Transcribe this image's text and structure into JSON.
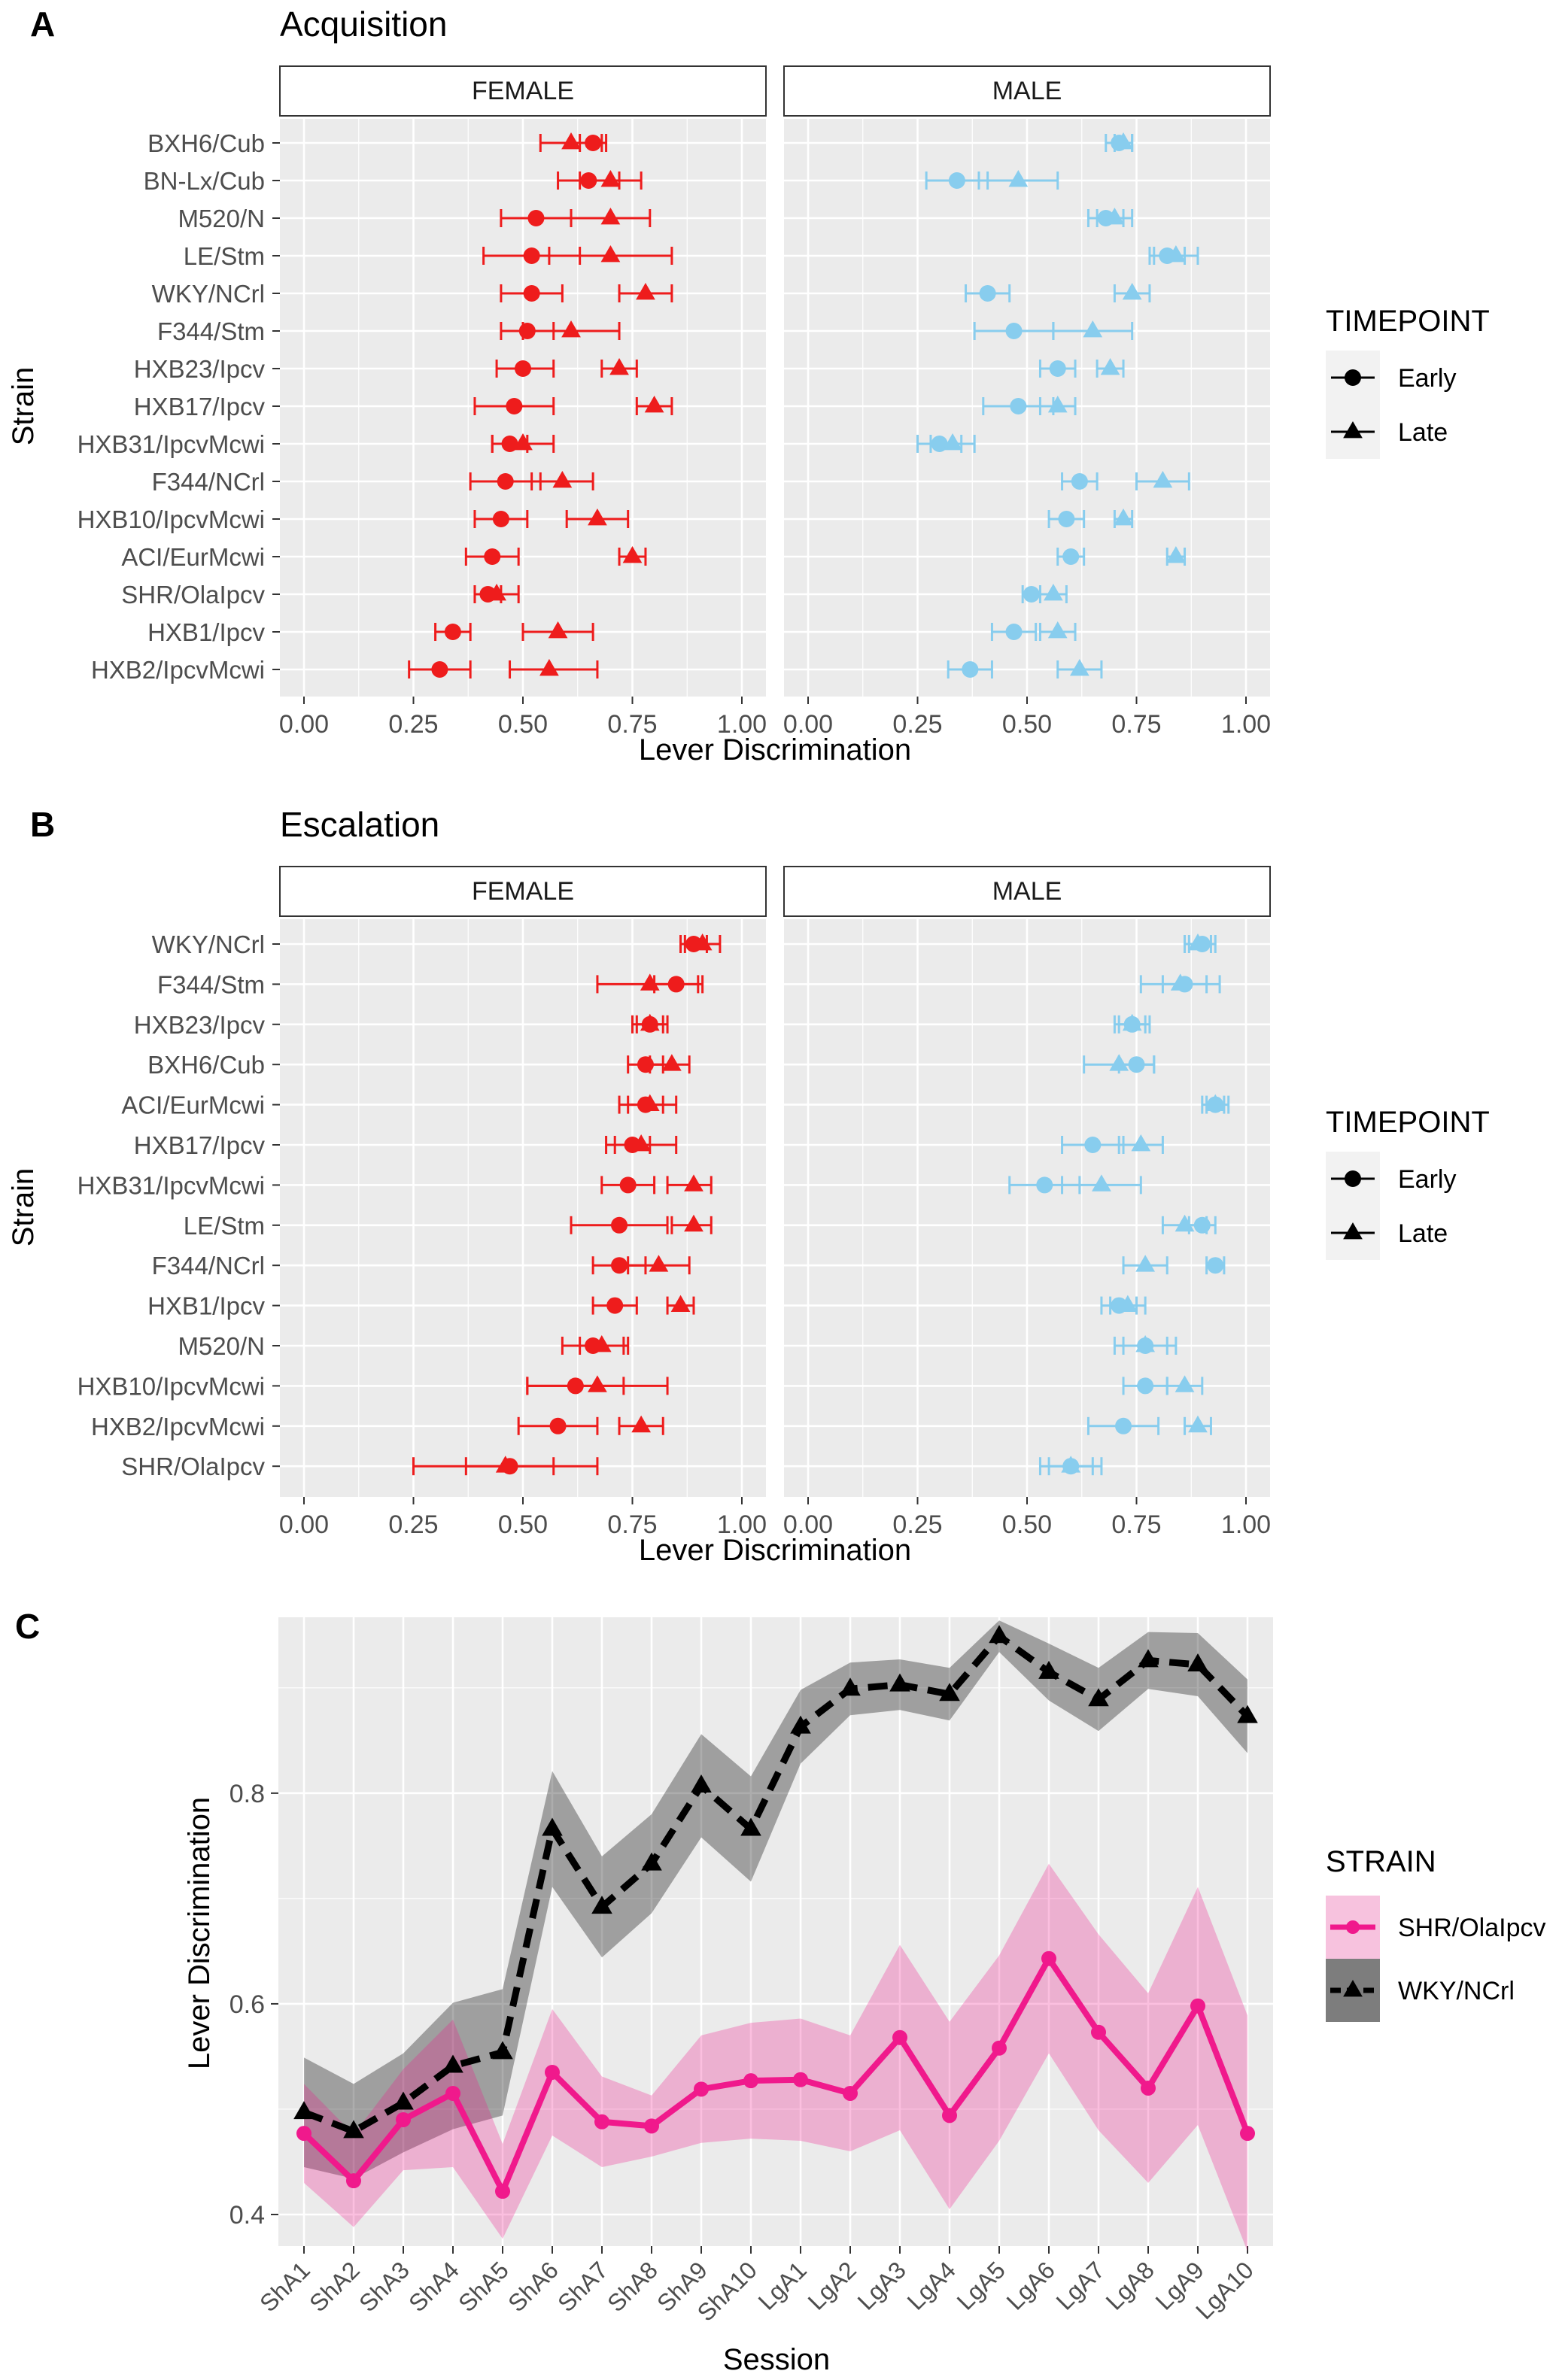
{
  "chart_data": [
    {
      "type": "scatter",
      "panel_label": "A",
      "title": "Acquisition",
      "xlabel": "Lever Discrimination",
      "ylabel": "Strain",
      "xlim": [
        0,
        1
      ],
      "x_ticks": [
        "0.00",
        "0.25",
        "0.50",
        "0.75",
        "1.00"
      ],
      "facets": [
        "FEMALE",
        "MALE"
      ],
      "legend": {
        "title": "TIMEPOINT",
        "entries": [
          "Early",
          "Late"
        ],
        "position": "right"
      },
      "series_colors": {
        "FEMALE": "#ee1c1c",
        "MALE": "#88cdee"
      },
      "strains": [
        "BXH6/Cub",
        "BN-Lx/Cub",
        "M520/N",
        "LE/Stm",
        "WKY/NCrl",
        "F344/Stm",
        "HXB23/Ipcv",
        "HXB17/Ipcv",
        "HXB31/IpcvMcwi",
        "F344/NCrl",
        "HXB10/IpcvMcwi",
        "ACI/EurMcwi",
        "SHR/OlaIpcv",
        "HXB1/Ipcv",
        "HXB2/IpcvMcwi"
      ],
      "data": {
        "FEMALE": {
          "Early": [
            0.66,
            0.65,
            0.53,
            0.52,
            0.52,
            0.51,
            0.5,
            0.48,
            0.47,
            0.46,
            0.45,
            0.43,
            0.42,
            0.34,
            0.31
          ],
          "Early_lo": [
            0.63,
            0.58,
            0.45,
            0.41,
            0.45,
            0.45,
            0.44,
            0.39,
            0.43,
            0.38,
            0.39,
            0.37,
            0.39,
            0.3,
            0.24
          ],
          "Early_hi": [
            0.69,
            0.72,
            0.61,
            0.63,
            0.59,
            0.57,
            0.57,
            0.57,
            0.51,
            0.54,
            0.51,
            0.49,
            0.45,
            0.38,
            0.38
          ],
          "Late": [
            0.61,
            0.7,
            0.7,
            0.7,
            0.78,
            0.61,
            0.72,
            0.8,
            0.5,
            0.59,
            0.67,
            0.75,
            0.44,
            0.58,
            0.56
          ],
          "Late_lo": [
            0.54,
            0.63,
            0.61,
            0.56,
            0.72,
            0.5,
            0.68,
            0.76,
            0.43,
            0.52,
            0.6,
            0.72,
            0.39,
            0.5,
            0.47
          ],
          "Late_hi": [
            0.68,
            0.77,
            0.79,
            0.84,
            0.84,
            0.72,
            0.76,
            0.84,
            0.57,
            0.66,
            0.74,
            0.78,
            0.49,
            0.66,
            0.67
          ]
        },
        "MALE": {
          "Early": [
            0.71,
            0.34,
            0.68,
            0.82,
            0.41,
            0.47,
            0.57,
            0.48,
            0.3,
            0.62,
            0.59,
            0.6,
            0.51,
            0.47,
            0.37
          ],
          "Early_lo": [
            0.68,
            0.27,
            0.64,
            0.78,
            0.36,
            0.38,
            0.53,
            0.4,
            0.25,
            0.58,
            0.55,
            0.57,
            0.49,
            0.42,
            0.32
          ],
          "Early_hi": [
            0.74,
            0.41,
            0.72,
            0.86,
            0.46,
            0.56,
            0.61,
            0.56,
            0.35,
            0.66,
            0.63,
            0.63,
            0.53,
            0.52,
            0.42
          ],
          "Late": [
            0.72,
            0.48,
            0.7,
            0.84,
            0.74,
            0.65,
            0.69,
            0.57,
            0.33,
            0.81,
            0.72,
            0.84,
            0.56,
            0.57,
            0.62
          ],
          "Late_lo": [
            0.7,
            0.39,
            0.66,
            0.79,
            0.7,
            0.56,
            0.66,
            0.53,
            0.28,
            0.75,
            0.7,
            0.82,
            0.53,
            0.53,
            0.57
          ],
          "Late_hi": [
            0.74,
            0.57,
            0.74,
            0.89,
            0.78,
            0.74,
            0.72,
            0.61,
            0.38,
            0.87,
            0.74,
            0.86,
            0.59,
            0.61,
            0.67
          ]
        }
      }
    },
    {
      "type": "scatter",
      "panel_label": "B",
      "title": "Escalation",
      "xlabel": "Lever Discrimination",
      "ylabel": "Strain",
      "xlim": [
        0,
        1
      ],
      "x_ticks": [
        "0.00",
        "0.25",
        "0.50",
        "0.75",
        "1.00"
      ],
      "facets": [
        "FEMALE",
        "MALE"
      ],
      "legend": {
        "title": "TIMEPOINT",
        "entries": [
          "Early",
          "Late"
        ],
        "position": "right"
      },
      "series_colors": {
        "FEMALE": "#ee1c1c",
        "MALE": "#88cdee"
      },
      "strains": [
        "WKY/NCrl",
        "F344/Stm",
        "HXB23/Ipcv",
        "BXH6/Cub",
        "ACI/EurMcwi",
        "HXB17/Ipcv",
        "HXB31/IpcvMcwi",
        "LE/Stm",
        "F344/NCrl",
        "HXB1/Ipcv",
        "M520/N",
        "HXB10/IpcvMcwi",
        "HXB2/IpcvMcwi",
        "SHR/OlaIpcv"
      ],
      "data": {
        "FEMALE": {
          "Early": [
            0.89,
            0.85,
            0.79,
            0.78,
            0.78,
            0.75,
            0.74,
            0.72,
            0.72,
            0.71,
            0.66,
            0.62,
            0.58,
            0.47
          ],
          "Early_lo": [
            0.86,
            0.8,
            0.76,
            0.74,
            0.74,
            0.71,
            0.68,
            0.61,
            0.66,
            0.66,
            0.59,
            0.51,
            0.49,
            0.25
          ],
          "Early_hi": [
            0.92,
            0.9,
            0.82,
            0.82,
            0.82,
            0.79,
            0.8,
            0.83,
            0.78,
            0.76,
            0.73,
            0.73,
            0.67,
            0.67
          ],
          "Late": [
            0.91,
            0.79,
            0.79,
            0.84,
            0.79,
            0.77,
            0.89,
            0.89,
            0.81,
            0.86,
            0.68,
            0.67,
            0.77,
            0.46
          ],
          "Late_lo": [
            0.87,
            0.67,
            0.75,
            0.79,
            0.72,
            0.69,
            0.83,
            0.84,
            0.74,
            0.83,
            0.63,
            0.51,
            0.72,
            0.37
          ],
          "Late_hi": [
            0.95,
            0.91,
            0.83,
            0.88,
            0.85,
            0.85,
            0.93,
            0.93,
            0.88,
            0.89,
            0.74,
            0.83,
            0.82,
            0.57
          ]
        },
        "MALE": {
          "Early": [
            0.9,
            0.86,
            0.74,
            0.75,
            0.93,
            0.65,
            0.54,
            0.9,
            0.93,
            0.71,
            0.77,
            0.77,
            0.72,
            0.6
          ],
          "Early_lo": [
            0.87,
            0.81,
            0.71,
            0.71,
            0.91,
            0.58,
            0.46,
            0.87,
            0.91,
            0.67,
            0.72,
            0.72,
            0.64,
            0.53
          ],
          "Early_hi": [
            0.93,
            0.91,
            0.77,
            0.79,
            0.95,
            0.72,
            0.62,
            0.93,
            0.95,
            0.75,
            0.82,
            0.82,
            0.8,
            0.67
          ],
          "Late": [
            0.89,
            0.85,
            0.74,
            0.71,
            0.93,
            0.76,
            0.67,
            0.86,
            0.77,
            0.73,
            0.77,
            0.86,
            0.89,
            0.6
          ],
          "Late_lo": [
            0.86,
            0.76,
            0.7,
            0.63,
            0.9,
            0.71,
            0.58,
            0.81,
            0.72,
            0.69,
            0.7,
            0.82,
            0.86,
            0.55
          ],
          "Late_hi": [
            0.92,
            0.94,
            0.78,
            0.79,
            0.96,
            0.81,
            0.76,
            0.91,
            0.82,
            0.77,
            0.84,
            0.9,
            0.92,
            0.65
          ]
        }
      }
    },
    {
      "type": "line",
      "panel_label": "C",
      "title": "",
      "xlabel": "Session",
      "ylabel": "Lever Discrimination",
      "ylim": [
        0.37,
        0.967
      ],
      "y_ticks": [
        "0.4",
        "0.6",
        "0.8"
      ],
      "categories": [
        "ShA1",
        "ShA2",
        "ShA3",
        "ShA4",
        "ShA5",
        "ShA6",
        "ShA7",
        "ShA8",
        "ShA9",
        "ShA10",
        "LgA1",
        "LgA2",
        "LgA3",
        "LgA4",
        "LgA5",
        "LgA6",
        "LgA7",
        "LgA8",
        "LgA9",
        "LgA10"
      ],
      "legend": {
        "title": "STRAIN",
        "position": "right"
      },
      "series": [
        {
          "name": "SHR/OlaIpcv",
          "color": "#f0198c",
          "values": [
            0.477,
            0.432,
            0.49,
            0.515,
            0.422,
            0.535,
            0.488,
            0.484,
            0.519,
            0.527,
            0.528,
            0.515,
            0.568,
            0.494,
            0.558,
            0.643,
            0.573,
            0.52,
            0.598,
            0.477
          ],
          "lower": [
            0.43,
            0.388,
            0.442,
            0.445,
            0.377,
            0.475,
            0.445,
            0.455,
            0.468,
            0.472,
            0.47,
            0.46,
            0.48,
            0.405,
            0.47,
            0.553,
            0.48,
            0.43,
            0.485,
            0.365
          ],
          "upper": [
            0.524,
            0.476,
            0.538,
            0.585,
            0.467,
            0.595,
            0.531,
            0.513,
            0.57,
            0.582,
            0.586,
            0.57,
            0.656,
            0.583,
            0.646,
            0.733,
            0.666,
            0.61,
            0.711,
            0.589
          ]
        },
        {
          "name": "WKY/NCrl",
          "color": "#000000",
          "values": [
            0.497,
            0.479,
            0.506,
            0.541,
            0.554,
            0.766,
            0.692,
            0.733,
            0.807,
            0.766,
            0.863,
            0.899,
            0.903,
            0.894,
            0.949,
            0.915,
            0.889,
            0.926,
            0.922,
            0.873
          ],
          "lower": [
            0.445,
            0.434,
            0.459,
            0.481,
            0.494,
            0.711,
            0.644,
            0.686,
            0.758,
            0.716,
            0.828,
            0.874,
            0.879,
            0.869,
            0.934,
            0.888,
            0.859,
            0.899,
            0.892,
            0.838
          ],
          "upper": [
            0.549,
            0.524,
            0.553,
            0.601,
            0.614,
            0.821,
            0.74,
            0.78,
            0.856,
            0.816,
            0.898,
            0.924,
            0.927,
            0.919,
            0.964,
            0.942,
            0.919,
            0.953,
            0.952,
            0.908
          ]
        }
      ]
    }
  ]
}
